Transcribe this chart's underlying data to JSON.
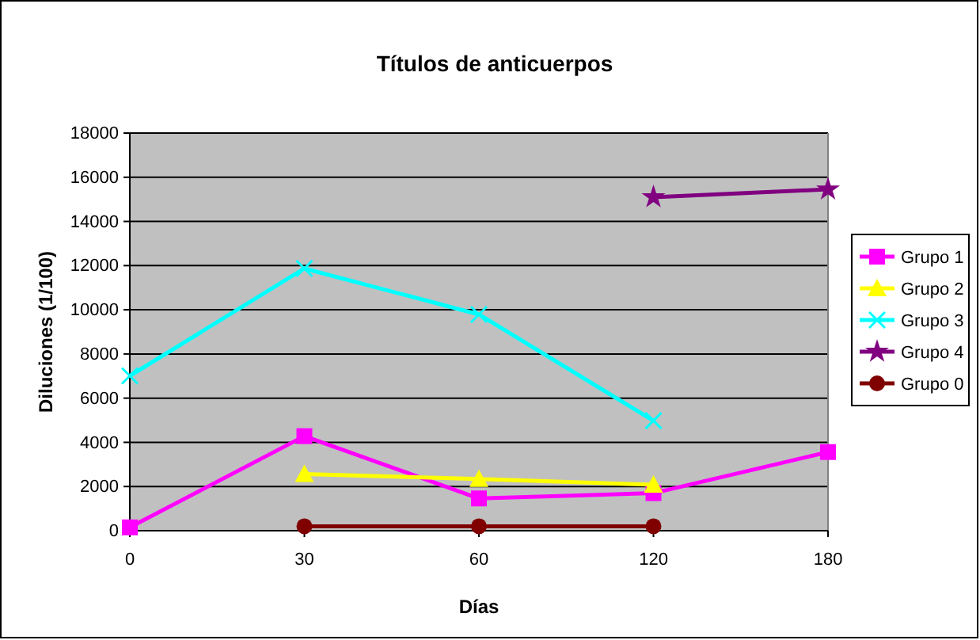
{
  "chart_data": {
    "type": "line",
    "title": "Títulos de anticuerpos",
    "xlabel": "Días",
    "ylabel": "Diluciones (1/100)",
    "categories": [
      "0",
      "30",
      "60",
      "120",
      "180"
    ],
    "ylim": [
      0,
      18000
    ],
    "yticks": [
      0,
      2000,
      4000,
      6000,
      8000,
      10000,
      12000,
      14000,
      16000,
      18000
    ],
    "grid": "y",
    "legend": "right",
    "line_style": "solid",
    "series": [
      {
        "name": "Grupo 1",
        "color": "#ff00ff",
        "marker": "square",
        "values": [
          150,
          4280,
          1460,
          1700,
          3560
        ]
      },
      {
        "name": "Grupo 2",
        "color": "#ffff00",
        "marker": "triangle",
        "values": [
          null,
          2560,
          2340,
          2080,
          null
        ]
      },
      {
        "name": "Grupo 3",
        "color": "#00ffff",
        "marker": "cross",
        "values": [
          7010,
          11870,
          9790,
          4980,
          null
        ]
      },
      {
        "name": "Grupo 4",
        "color": "#800080",
        "marker": "star",
        "values": [
          null,
          null,
          null,
          15100,
          15450
        ]
      },
      {
        "name": "Grupo 0",
        "color": "#800000",
        "marker": "circle",
        "values": [
          null,
          200,
          200,
          200,
          null
        ]
      }
    ]
  }
}
